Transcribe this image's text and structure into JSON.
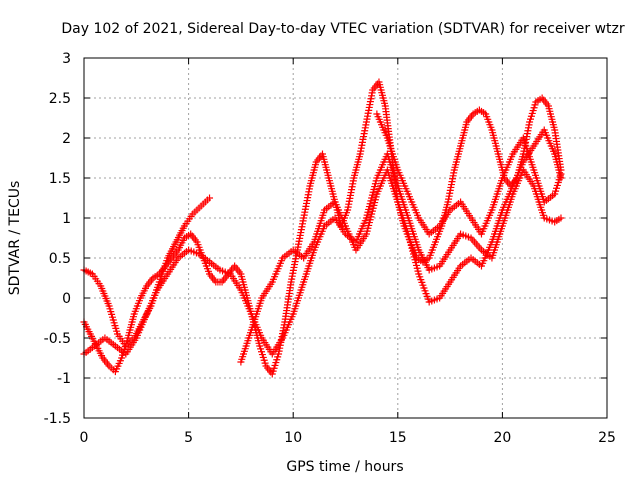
{
  "chart_data": {
    "type": "scatter",
    "title": "Day 102 of 2021, Sidereal Day-to-day VTEC variation (SDTVAR) for receiver wtzr",
    "xlabel": "GPS time / hours",
    "ylabel": "SDTVAR / TECUs",
    "xlim": [
      0,
      25
    ],
    "ylim": [
      -1.5,
      3
    ],
    "xticks": [
      0,
      5,
      10,
      15,
      20,
      25
    ],
    "yticks": [
      -1.5,
      -1,
      -0.5,
      0,
      0.5,
      1,
      1.5,
      2,
      2.5,
      3
    ],
    "xtick_labels": [
      "0",
      "5",
      "10",
      "15",
      "20",
      "25"
    ],
    "ytick_labels": [
      "-1.5",
      "-1",
      "-0.5",
      "0",
      "0.5",
      "1",
      "1.5",
      "2",
      "2.5",
      "3"
    ],
    "grid": true,
    "legend": "none",
    "marker": "plus",
    "color": "#ff0000",
    "series": [
      {
        "x": [
          0,
          0.3,
          0.6,
          0.9,
          1.2,
          1.5,
          1.8,
          2.1,
          2.4,
          2.7,
          3.0,
          3.3,
          3.6,
          3.9,
          4.2,
          4.5,
          4.8,
          5.1,
          5.4,
          5.7,
          6.0,
          6.3,
          6.6,
          6.9,
          7.2,
          7.5,
          7.8,
          8.1,
          8.4,
          8.7,
          9.0,
          9.3,
          9.6,
          9.9,
          10.2,
          10.5,
          10.8,
          11.1,
          11.4,
          11.7,
          12.0,
          12.3,
          12.6,
          12.9,
          13.2,
          13.5,
          13.8,
          14.1,
          14.4,
          14.7,
          15.0,
          15.3,
          15.6,
          15.9,
          16.2,
          16.5,
          16.8,
          17.1,
          17.4,
          17.7,
          18.0,
          18.3,
          18.6,
          18.9,
          19.2,
          19.5,
          19.8,
          20.1,
          20.4,
          20.7,
          21.0,
          21.3,
          21.6,
          21.9,
          22.2,
          22.5,
          22.8
        ],
        "y": [
          -0.3,
          -0.45,
          -0.6,
          -0.75,
          -0.85,
          -0.92,
          -0.75,
          -0.5,
          -0.2,
          0.0,
          0.15,
          0.25,
          0.3,
          0.4,
          0.5,
          0.6,
          0.75,
          0.8,
          0.7,
          0.5,
          0.3,
          0.2,
          0.2,
          0.3,
          0.4,
          0.3,
          0.0,
          -0.3,
          -0.6,
          -0.85,
          -0.95,
          -0.7,
          -0.3,
          0.2,
          0.6,
          1.0,
          1.4,
          1.7,
          1.8,
          1.5,
          1.2,
          0.9,
          1.1,
          1.5,
          1.8,
          2.2,
          2.6,
          2.7,
          2.4,
          1.8,
          1.2,
          0.9,
          0.7,
          0.5,
          0.45,
          0.5,
          0.7,
          0.9,
          1.2,
          1.6,
          1.9,
          2.2,
          2.3,
          2.35,
          2.3,
          2.1,
          1.8,
          1.5,
          1.4,
          1.5,
          1.8,
          2.2,
          2.45,
          2.5,
          2.4,
          2.1,
          1.6
        ]
      },
      {
        "x": [
          0,
          0.4,
          0.8,
          1.2,
          1.6,
          2.0,
          2.4,
          2.8,
          3.2,
          3.6,
          4.0,
          4.4,
          4.8,
          5.2,
          5.6,
          6.0
        ],
        "y": [
          0.35,
          0.3,
          0.15,
          -0.1,
          -0.45,
          -0.6,
          -0.5,
          -0.3,
          -0.1,
          0.2,
          0.5,
          0.7,
          0.9,
          1.05,
          1.15,
          1.25
        ]
      },
      {
        "x": [
          0,
          0.5,
          1.0,
          1.5,
          2.0,
          2.5,
          3.0,
          3.5,
          4.0,
          4.5,
          5.0,
          5.5,
          6.0,
          6.5,
          7.0,
          7.5,
          8.0,
          8.5,
          9.0,
          9.5,
          10.0,
          10.5,
          11.0,
          11.5,
          12.0,
          12.5,
          13.0,
          13.5,
          14.0,
          14.5,
          15.0,
          15.5,
          16.0,
          16.5,
          17.0,
          17.5,
          18.0,
          18.5,
          19.0,
          19.5,
          20.0,
          20.5,
          21.0,
          21.5,
          22.0,
          22.5,
          22.8
        ],
        "y": [
          -0.7,
          -0.6,
          -0.5,
          -0.6,
          -0.7,
          -0.5,
          -0.2,
          0.1,
          0.3,
          0.5,
          0.6,
          0.55,
          0.45,
          0.35,
          0.3,
          0.1,
          -0.2,
          -0.5,
          -0.7,
          -0.5,
          -0.2,
          0.2,
          0.6,
          0.9,
          1.0,
          0.8,
          0.7,
          1.0,
          1.5,
          1.8,
          1.4,
          1.0,
          0.6,
          0.35,
          0.4,
          0.6,
          0.8,
          0.75,
          0.6,
          0.5,
          0.9,
          1.3,
          1.6,
          1.4,
          1.0,
          0.95,
          1.0
        ]
      },
      {
        "x": [
          7.5,
          8.0,
          8.5,
          9.0,
          9.5,
          10.0,
          10.5,
          11.0,
          11.5,
          12.0,
          12.5,
          13.0,
          13.5,
          14.0,
          14.5,
          15.0,
          15.5,
          16.0,
          16.5,
          17.0,
          17.5,
          18.0,
          18.5,
          19.0,
          19.5,
          20.0,
          20.5,
          21.0,
          21.5,
          22.0,
          22.5,
          22.8
        ],
        "y": [
          -0.8,
          -0.4,
          0.0,
          0.2,
          0.5,
          0.6,
          0.5,
          0.7,
          1.1,
          1.2,
          0.9,
          0.6,
          0.8,
          1.3,
          1.6,
          1.2,
          0.8,
          0.3,
          -0.05,
          0.0,
          0.2,
          0.4,
          0.5,
          0.4,
          0.7,
          1.1,
          1.4,
          1.7,
          1.9,
          2.1,
          1.8,
          1.5
        ]
      },
      {
        "x": [
          14.0,
          14.5,
          15.0,
          15.5,
          16.0,
          16.5,
          17.0,
          17.5,
          18.0,
          18.5,
          19.0,
          19.5,
          20.0,
          20.5,
          21.0,
          21.5,
          22.0,
          22.5,
          22.8
        ],
        "y": [
          2.3,
          2.0,
          1.6,
          1.3,
          1.0,
          0.8,
          0.9,
          1.1,
          1.2,
          1.0,
          0.8,
          1.1,
          1.5,
          1.8,
          2.0,
          1.6,
          1.2,
          1.3,
          1.55
        ]
      }
    ]
  }
}
